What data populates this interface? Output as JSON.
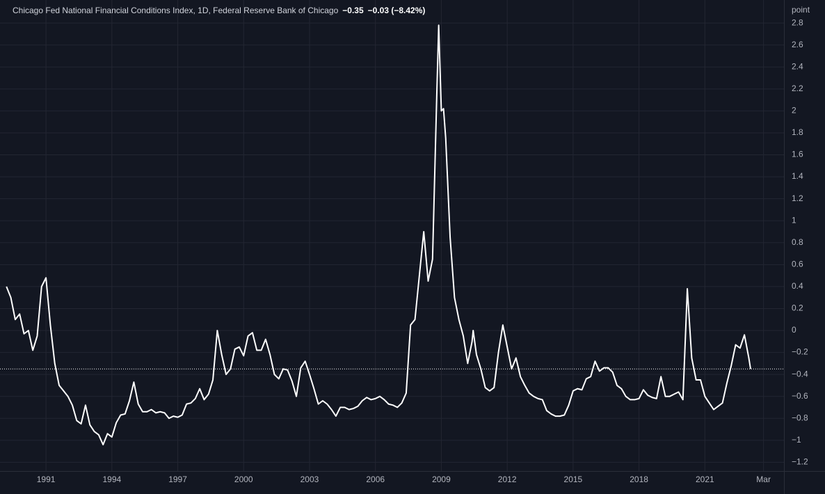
{
  "chart_data": {
    "type": "line",
    "title": "Chicago Fed National Financial Conditions Index, 1D, Federal Reserve Bank of Chicago",
    "last_value": "−0.35",
    "change": "−0.03 (−8.42%)",
    "y_unit": "point",
    "grid": true,
    "xlim": [
      1989.16,
      2024.6
    ],
    "xticks": [
      1991,
      1994,
      1997,
      2000,
      2003,
      2006,
      2009,
      2012,
      2015,
      2018,
      2021,
      {
        "value": 2023.67,
        "label": "Mar"
      }
    ],
    "ylim": [
      -1.28,
      3.01
    ],
    "yticks": [
      2.8,
      2.6,
      2.4,
      2.2,
      2,
      1.8,
      1.6,
      1.4,
      1.2,
      1,
      0.8,
      0.6,
      0.4,
      0.2,
      0,
      {
        "value": -0.2,
        "label": "−0.2"
      },
      {
        "value": -0.4,
        "label": "−0.4"
      },
      {
        "value": -0.6,
        "label": "−0.6"
      },
      {
        "value": -0.8,
        "label": "−0.8"
      },
      {
        "value": -1,
        "label": "−1"
      },
      {
        "value": -1.2,
        "label": "−1.2"
      }
    ],
    "x": [
      1989.2,
      1989.4,
      1989.6,
      1989.8,
      1990.0,
      1990.2,
      1990.4,
      1990.6,
      1990.8,
      1991.0,
      1991.2,
      1991.4,
      1991.6,
      1991.8,
      1992.0,
      1992.2,
      1992.4,
      1992.6,
      1992.8,
      1993.0,
      1993.2,
      1993.4,
      1993.6,
      1993.8,
      1994.0,
      1994.2,
      1994.4,
      1994.6,
      1994.8,
      1995.0,
      1995.2,
      1995.4,
      1995.6,
      1995.8,
      1996.0,
      1996.2,
      1996.4,
      1996.6,
      1996.8,
      1997.0,
      1997.2,
      1997.4,
      1997.6,
      1997.8,
      1998.0,
      1998.2,
      1998.4,
      1998.6,
      1998.8,
      1999.0,
      1999.2,
      1999.4,
      1999.6,
      1999.8,
      2000.0,
      2000.2,
      2000.4,
      2000.6,
      2000.8,
      2001.0,
      2001.2,
      2001.4,
      2001.6,
      2001.8,
      2002.0,
      2002.2,
      2002.4,
      2002.6,
      2002.8,
      2003.0,
      2003.2,
      2003.4,
      2003.6,
      2003.8,
      2004.0,
      2004.2,
      2004.4,
      2004.6,
      2004.8,
      2005.0,
      2005.2,
      2005.4,
      2005.6,
      2005.8,
      2006.0,
      2006.2,
      2006.4,
      2006.6,
      2006.8,
      2007.0,
      2007.2,
      2007.4,
      2007.6,
      2007.8,
      2008.0,
      2008.2,
      2008.4,
      2008.6,
      2008.8,
      2008.88,
      2009.0,
      2009.1,
      2009.2,
      2009.4,
      2009.6,
      2009.8,
      2010.0,
      2010.2,
      2010.4,
      2010.45,
      2010.6,
      2010.8,
      2011.0,
      2011.2,
      2011.4,
      2011.6,
      2011.8,
      2012.0,
      2012.2,
      2012.4,
      2012.6,
      2012.8,
      2013.0,
      2013.2,
      2013.4,
      2013.6,
      2013.8,
      2014.0,
      2014.2,
      2014.4,
      2014.6,
      2014.8,
      2015.0,
      2015.2,
      2015.4,
      2015.6,
      2015.8,
      2016.0,
      2016.2,
      2016.4,
      2016.6,
      2016.8,
      2017.0,
      2017.2,
      2017.4,
      2017.6,
      2017.8,
      2018.0,
      2018.2,
      2018.4,
      2018.6,
      2018.8,
      2019.0,
      2019.2,
      2019.4,
      2019.6,
      2019.8,
      2020.0,
      2020.2,
      2020.4,
      2020.6,
      2020.8,
      2021.0,
      2021.2,
      2021.4,
      2021.6,
      2021.8,
      2022.0,
      2022.2,
      2022.4,
      2022.6,
      2022.8,
      2023.0,
      2023.08
    ],
    "series": [
      {
        "color": "#ffffff",
        "values": [
          0.4,
          0.3,
          0.1,
          0.15,
          -0.03,
          0.0,
          -0.18,
          -0.05,
          0.4,
          0.48,
          0.05,
          -0.3,
          -0.5,
          -0.55,
          -0.6,
          -0.68,
          -0.82,
          -0.85,
          -0.68,
          -0.86,
          -0.92,
          -0.95,
          -1.04,
          -0.94,
          -0.97,
          -0.84,
          -0.77,
          -0.76,
          -0.64,
          -0.47,
          -0.67,
          -0.74,
          -0.74,
          -0.72,
          -0.75,
          -0.74,
          -0.75,
          -0.8,
          -0.78,
          -0.79,
          -0.77,
          -0.67,
          -0.66,
          -0.62,
          -0.53,
          -0.63,
          -0.58,
          -0.45,
          0.0,
          -0.22,
          -0.4,
          -0.35,
          -0.17,
          -0.15,
          -0.23,
          -0.05,
          -0.02,
          -0.18,
          -0.18,
          -0.08,
          -0.22,
          -0.4,
          -0.44,
          -0.35,
          -0.36,
          -0.46,
          -0.6,
          -0.34,
          -0.28,
          -0.4,
          -0.53,
          -0.67,
          -0.64,
          -0.67,
          -0.72,
          -0.78,
          -0.7,
          -0.7,
          -0.72,
          -0.71,
          -0.69,
          -0.64,
          -0.61,
          -0.63,
          -0.62,
          -0.6,
          -0.63,
          -0.67,
          -0.68,
          -0.7,
          -0.66,
          -0.57,
          0.05,
          0.1,
          0.5,
          0.9,
          0.45,
          0.65,
          2.2,
          2.78,
          2.0,
          2.02,
          1.75,
          0.85,
          0.3,
          0.1,
          -0.05,
          -0.3,
          -0.1,
          0.0,
          -0.22,
          -0.35,
          -0.52,
          -0.55,
          -0.52,
          -0.2,
          0.05,
          -0.15,
          -0.35,
          -0.25,
          -0.42,
          -0.5,
          -0.57,
          -0.6,
          -0.62,
          -0.63,
          -0.73,
          -0.76,
          -0.78,
          -0.78,
          -0.77,
          -0.68,
          -0.55,
          -0.53,
          -0.54,
          -0.44,
          -0.42,
          -0.28,
          -0.37,
          -0.34,
          -0.34,
          -0.38,
          -0.5,
          -0.53,
          -0.6,
          -0.63,
          -0.63,
          -0.62,
          -0.54,
          -0.59,
          -0.61,
          -0.62,
          -0.42,
          -0.6,
          -0.6,
          -0.58,
          -0.56,
          -0.63,
          0.38,
          -0.25,
          -0.45,
          -0.45,
          -0.6,
          -0.66,
          -0.72,
          -0.69,
          -0.66,
          -0.48,
          -0.32,
          -0.13,
          -0.16,
          -0.04,
          -0.25,
          -0.35
        ]
      }
    ]
  }
}
